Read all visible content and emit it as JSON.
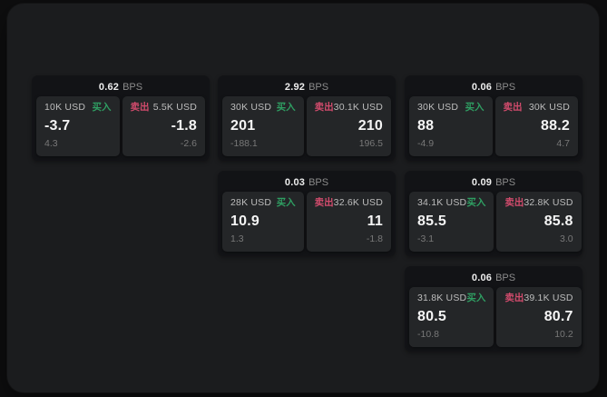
{
  "theme": {
    "panel_bg": "#1b1c1e",
    "card_bg": "#121316",
    "tile_bg": "#242628",
    "buy_color": "#2f9e62",
    "sell_color": "#d14b6c",
    "bps_unit_color": "#8b8b8b"
  },
  "labels": {
    "bps_unit": "BPS",
    "buy": "买入",
    "sell": "卖出"
  },
  "cards": [
    {
      "bps": "0.62",
      "buy": {
        "size": "10K USD",
        "price": "-3.7",
        "delta": "4.3"
      },
      "sell": {
        "size": "5.5K USD",
        "price": "-1.8",
        "delta": "-2.6"
      }
    },
    {
      "bps": "2.92",
      "buy": {
        "size": "30K USD",
        "price": "201",
        "delta": "-188.1"
      },
      "sell": {
        "size": "30.1K USD",
        "price": "210",
        "delta": "196.5"
      }
    },
    {
      "bps": "0.06",
      "buy": {
        "size": "30K USD",
        "price": "88",
        "delta": "-4.9"
      },
      "sell": {
        "size": "30K USD",
        "price": "88.2",
        "delta": "4.7"
      }
    },
    {
      "bps": "0.03",
      "buy": {
        "size": "28K USD",
        "price": "10.9",
        "delta": "1.3"
      },
      "sell": {
        "size": "32.6K USD",
        "price": "11",
        "delta": "-1.8"
      }
    },
    {
      "bps": "0.09",
      "buy": {
        "size": "34.1K USD",
        "price": "85.5",
        "delta": "-3.1"
      },
      "sell": {
        "size": "32.8K USD",
        "price": "85.8",
        "delta": "3.0"
      }
    },
    {
      "bps": "0.06",
      "buy": {
        "size": "31.8K USD",
        "price": "80.5",
        "delta": "-10.8"
      },
      "sell": {
        "size": "39.1K USD",
        "price": "80.7",
        "delta": "10.2"
      }
    }
  ]
}
